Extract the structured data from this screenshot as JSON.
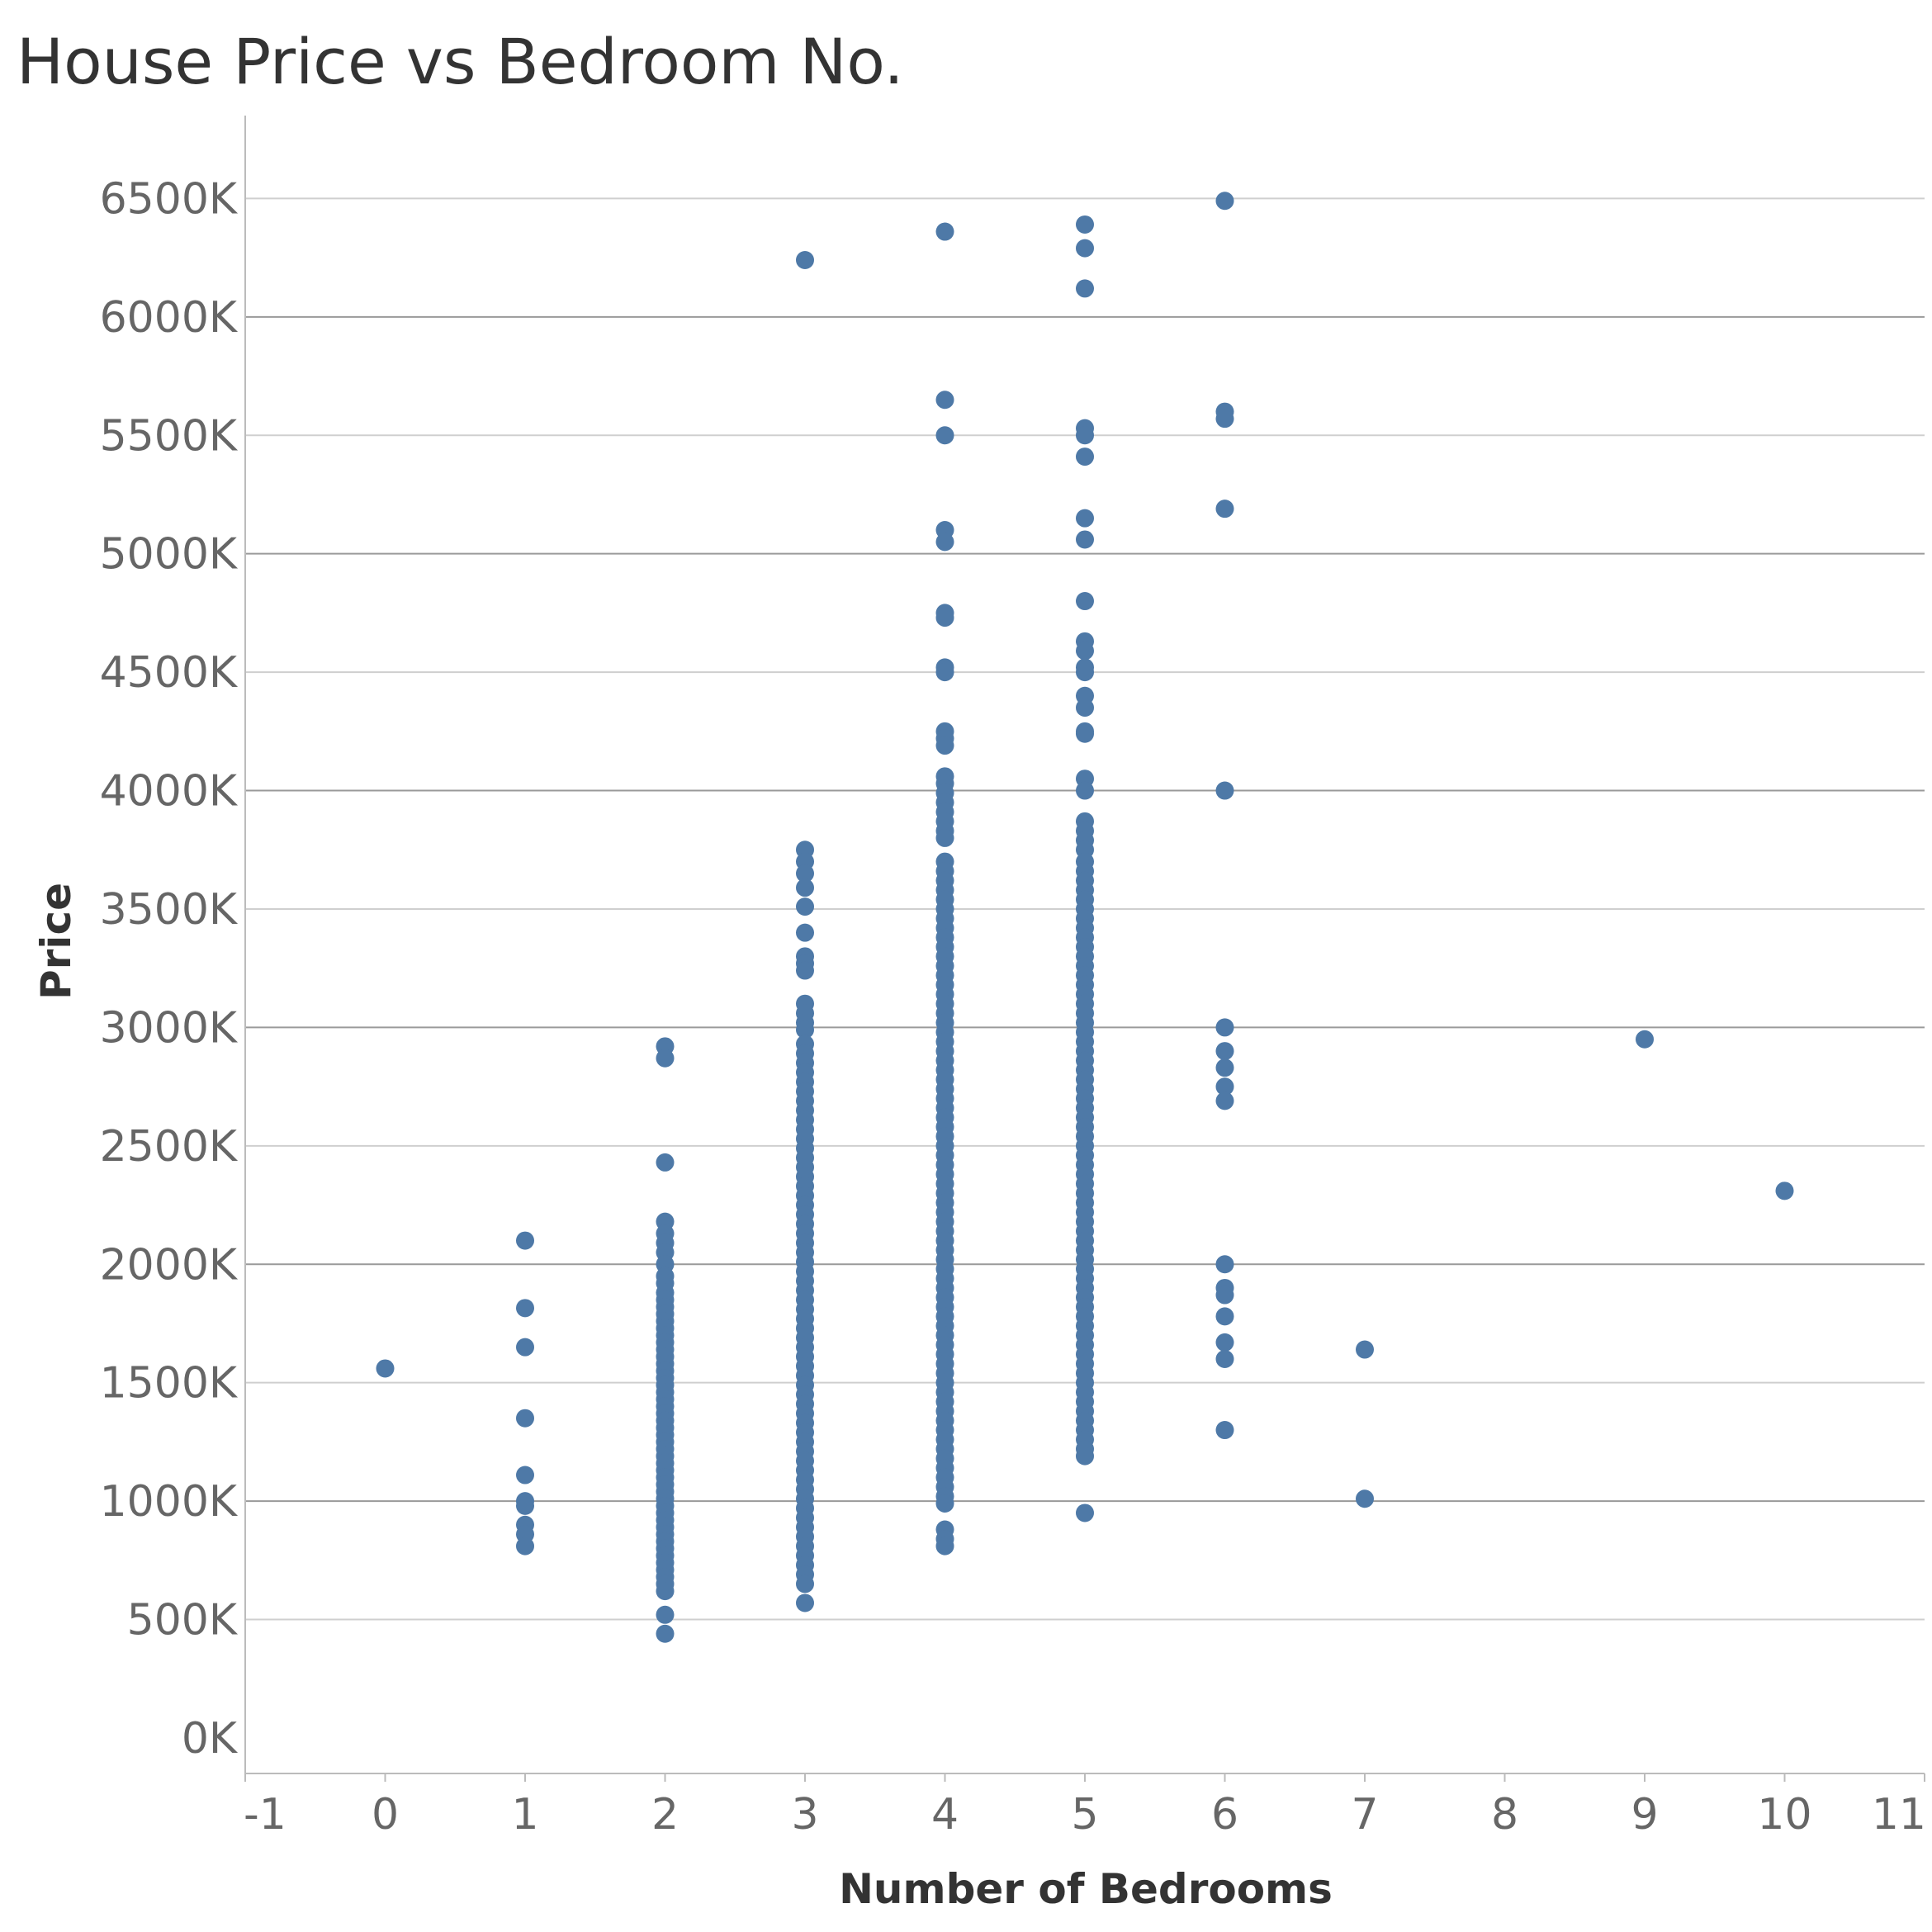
{
  "chart_data": {
    "type": "scatter",
    "title": "House Price vs Bedroom No.",
    "xlabel": "Number of Bedrooms",
    "ylabel": "Price",
    "xlim": [
      -1,
      11
    ],
    "ylim": [
      -150,
      6850
    ],
    "x_ticks": [
      -1,
      0,
      1,
      2,
      3,
      4,
      5,
      6,
      7,
      8,
      9,
      10,
      11
    ],
    "y_ticks": [
      0,
      500,
      1000,
      1500,
      2000,
      2500,
      3000,
      3500,
      4000,
      4500,
      5000,
      5500,
      6000,
      6500
    ],
    "y_tick_labels": [
      "0K",
      "500K",
      "1000K",
      "1500K",
      "2000K",
      "2500K",
      "3000K",
      "3500K",
      "4000K",
      "4500K",
      "5000K",
      "5500K",
      "6000K",
      "6500K"
    ],
    "y_unit": "K",
    "grid": true,
    "marker_color": "#4e79a7",
    "points": [
      {
        "x": 0,
        "y": [
          1560
        ]
      },
      {
        "x": 1,
        "y": [
          2100,
          1815,
          1650,
          1350,
          1110,
          1000,
          980,
          900,
          860,
          810
        ]
      },
      {
        "x": 2,
        "y": [
          2920,
          2870,
          2430,
          2180,
          2130,
          2090,
          2050,
          2000,
          1950,
          1920,
          1880,
          1850,
          1820,
          1790,
          1760,
          1730,
          1700,
          1670,
          1640,
          1610,
          1580,
          1550,
          1520,
          1490,
          1460,
          1430,
          1400,
          1370,
          1340,
          1310,
          1280,
          1250,
          1220,
          1190,
          1160,
          1130,
          1100,
          1070,
          1040,
          1010,
          980,
          950,
          920,
          890,
          860,
          830,
          800,
          770,
          740,
          710,
          680,
          650,
          620,
          520,
          440
        ]
      },
      {
        "x": 3,
        "y": [
          6240,
          3750,
          3700,
          3650,
          3590,
          3510,
          3400,
          3300,
          3270,
          3240,
          3100,
          3060,
          3020,
          2990,
          2930,
          2890,
          2850,
          2810,
          2770,
          2730,
          2690,
          2650,
          2610,
          2570,
          2530,
          2490,
          2450,
          2410,
          2370,
          2330,
          2290,
          2250,
          2210,
          2170,
          2130,
          2090,
          2050,
          2010,
          1970,
          1930,
          1890,
          1850,
          1810,
          1770,
          1730,
          1690,
          1650,
          1610,
          1570,
          1530,
          1490,
          1450,
          1410,
          1370,
          1330,
          1290,
          1250,
          1210,
          1170,
          1130,
          1090,
          1050,
          1010,
          970,
          930,
          890,
          850,
          810,
          770,
          730,
          690,
          650,
          570
        ]
      },
      {
        "x": 4,
        "y": [
          6360,
          5650,
          5500,
          5100,
          5050,
          4750,
          4730,
          4520,
          4500,
          4250,
          4220,
          4190,
          4060,
          4030,
          3990,
          3950,
          3910,
          3870,
          3830,
          3800,
          3700,
          3660,
          3620,
          3580,
          3540,
          3500,
          3460,
          3420,
          3380,
          3340,
          3300,
          3260,
          3220,
          3180,
          3140,
          3100,
          3060,
          3020,
          2980,
          2940,
          2900,
          2860,
          2820,
          2780,
          2740,
          2700,
          2660,
          2620,
          2580,
          2540,
          2500,
          2460,
          2420,
          2380,
          2340,
          2300,
          2260,
          2220,
          2180,
          2140,
          2100,
          2060,
          2020,
          1980,
          1940,
          1900,
          1860,
          1820,
          1780,
          1740,
          1700,
          1660,
          1620,
          1580,
          1540,
          1500,
          1460,
          1420,
          1380,
          1340,
          1300,
          1260,
          1220,
          1180,
          1140,
          1100,
          1060,
          1020,
          990,
          880,
          840,
          810
        ]
      },
      {
        "x": 5,
        "y": [
          6390,
          6290,
          6120,
          5530,
          5500,
          5410,
          5150,
          5060,
          4800,
          4630,
          4590,
          4520,
          4500,
          4400,
          4350,
          4250,
          4240,
          4050,
          4000,
          3870,
          3830,
          3790,
          3750,
          3700,
          3660,
          3620,
          3580,
          3540,
          3500,
          3460,
          3420,
          3380,
          3340,
          3300,
          3260,
          3220,
          3180,
          3140,
          3100,
          3060,
          3020,
          2980,
          2940,
          2900,
          2860,
          2820,
          2780,
          2740,
          2700,
          2660,
          2620,
          2580,
          2540,
          2500,
          2460,
          2420,
          2380,
          2340,
          2300,
          2260,
          2220,
          2180,
          2140,
          2100,
          2060,
          2020,
          1980,
          1940,
          1900,
          1860,
          1820,
          1780,
          1740,
          1700,
          1660,
          1620,
          1580,
          1540,
          1500,
          1460,
          1420,
          1380,
          1340,
          1300,
          1260,
          1220,
          1190,
          950
        ]
      },
      {
        "x": 6,
        "y": [
          6490,
          5600,
          5570,
          5190,
          4000,
          3000,
          2900,
          2830,
          2750,
          2690,
          2000,
          1900,
          1870,
          1780,
          1670,
          1600,
          1300
        ]
      },
      {
        "x": 7,
        "y": [
          1640,
          1010
        ]
      },
      {
        "x": 9,
        "y": [
          2950
        ]
      },
      {
        "x": 10,
        "y": [
          2310
        ]
      }
    ]
  }
}
